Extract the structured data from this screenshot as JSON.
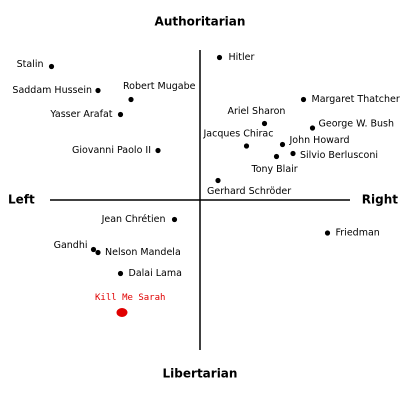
{
  "chart_data": {
    "type": "scatter",
    "axis_labels": {
      "top": "Authoritarian",
      "bottom": "Libertarian",
      "left": "Left",
      "right": "Right"
    },
    "xlim": [
      -10,
      10
    ],
    "ylim": [
      -10,
      10
    ],
    "labels": [
      "Stalin",
      "Hitler",
      "Saddam Hussein",
      "Robert Mugabe",
      "Yasser Arafat",
      "Margaret Thatcher",
      "Ariel Sharon",
      "George W. Bush",
      "Jacques Chirac",
      "John Howard",
      "Silvio Berlusconi",
      "Tony Blair",
      "Giovanni Paolo II",
      "Gerhard Schröder",
      "Jean Chrétien",
      "Friedman",
      "Gandhi",
      "Nelson Mandela",
      "Dalai Lama"
    ],
    "x": [
      -9.9,
      1.3,
      -6.8,
      -4.6,
      -5.3,
      6.9,
      4.3,
      7.5,
      3.1,
      5.5,
      6.2,
      5.1,
      -2.8,
      1.2,
      -1.7,
      8.5,
      -7.1,
      -6.8,
      -5.3
    ],
    "y": [
      8.9,
      9.5,
      7.3,
      6.7,
      5.7,
      6.7,
      5.1,
      4.8,
      3.6,
      3.7,
      3.1,
      2.9,
      3.3,
      1.3,
      -1.3,
      -2.2,
      -3.3,
      -3.5,
      -4.9
    ],
    "color": "#000000",
    "highlight": {
      "label": "Kill Me Sarah",
      "x": -5.2,
      "y": -7.5,
      "color": "#e00000"
    }
  }
}
